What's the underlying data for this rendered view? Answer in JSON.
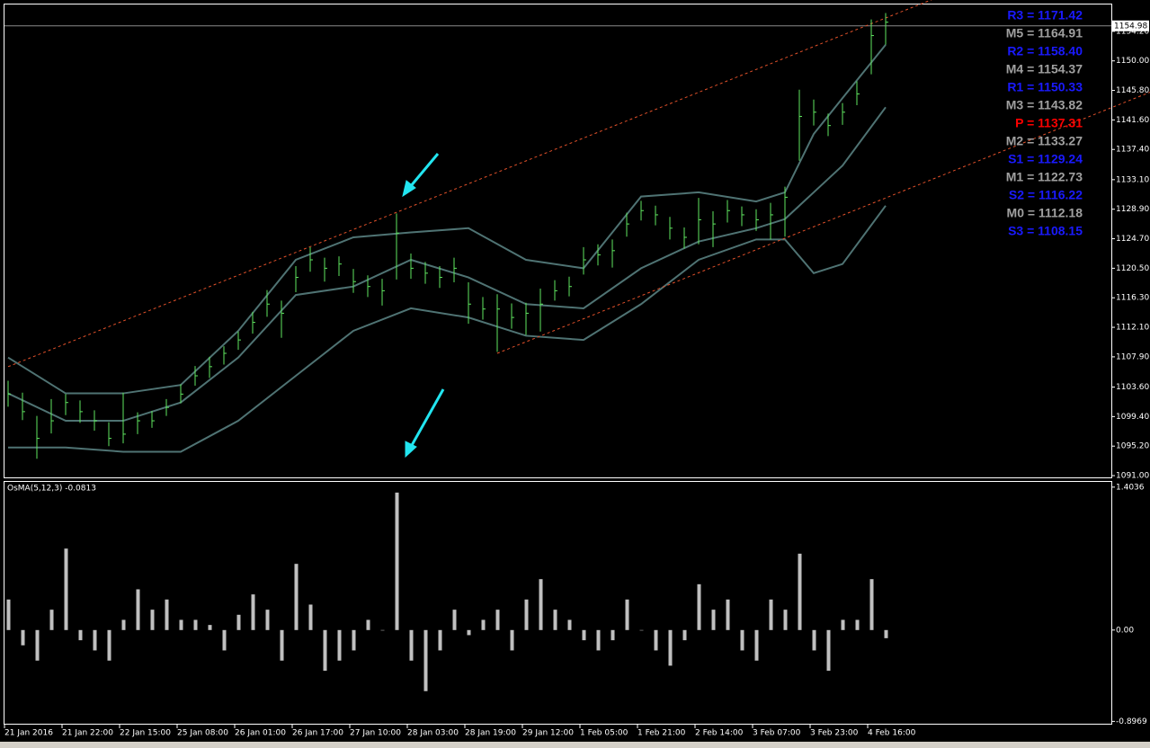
{
  "chart_data": [
    {
      "type": "ohlc",
      "categories": [
        "21 Jan 2016",
        null,
        null,
        null,
        "21 Jan 22:00",
        null,
        null,
        null,
        "22 Jan 15:00",
        null,
        null,
        null,
        "25 Jan 08:00",
        null,
        null,
        null,
        "26 Jan 01:00",
        null,
        null,
        null,
        "26 Jan 17:00",
        null,
        null,
        null,
        "27 Jan 10:00",
        null,
        null,
        null,
        "28 Jan 03:00",
        null,
        null,
        null,
        "28 Jan 19:00",
        null,
        null,
        null,
        "29 Jan 12:00",
        null,
        null,
        null,
        "1 Feb 05:00",
        null,
        null,
        null,
        "1 Feb 21:00",
        null,
        null,
        null,
        "2 Feb 14:00",
        null,
        null,
        null,
        "3 Feb 07:00",
        null,
        null,
        null,
        "3 Feb 23:00",
        null,
        null,
        null,
        "4 Feb 16:00",
        null
      ],
      "high": [
        1104.5,
        1102.8,
        1099.5,
        1101.9,
        1102.6,
        1101.7,
        1100.3,
        1098.6,
        1102.8,
        1100.0,
        1100.2,
        1101.9,
        1104.0,
        1106.6,
        1107.9,
        1109.4,
        1111.5,
        1114.3,
        1117.4,
        1115.9,
        1120.8,
        1123.5,
        1122.0,
        1122.2,
        1120.4,
        1119.5,
        1119.0,
        1128.3,
        1122.6,
        1121.4,
        1120.8,
        1122.0,
        1118.5,
        1116.4,
        1116.8,
        1115.5,
        1115.6,
        1117.6,
        1118.8,
        1119.3,
        1123.5,
        1123.9,
        1124.6,
        1128.4,
        1130.1,
        1129.4,
        1127.8,
        1126.3,
        1130.5,
        1128.6,
        1130.2,
        1129.3,
        1128.9,
        1129.8,
        1132.1,
        1145.9,
        1144.5,
        1142.5,
        1144.0,
        1147.1,
        1155.9,
        1156.8
      ],
      "low": [
        1100.8,
        1098.9,
        1093.4,
        1097.0,
        1099.6,
        1098.5,
        1097.4,
        1095.2,
        1095.6,
        1096.9,
        1097.8,
        1099.5,
        1101.3,
        1103.8,
        1104.9,
        1106.8,
        1108.9,
        1111.2,
        1113.6,
        1110.6,
        1117.1,
        1120.0,
        1118.6,
        1119.4,
        1117.0,
        1116.4,
        1115.2,
        1118.9,
        1119.0,
        1118.3,
        1117.7,
        1118.5,
        1112.6,
        1113.2,
        1108.6,
        1111.9,
        1111.0,
        1111.5,
        1115.9,
        1116.5,
        1119.6,
        1120.9,
        1120.6,
        1125.0,
        1127.3,
        1126.6,
        1124.6,
        1123.3,
        1123.9,
        1123.5,
        1127.0,
        1126.5,
        1125.8,
        1124.6,
        1125.0,
        1135.8,
        1140.8,
        1139.3,
        1140.9,
        1143.7,
        1148.1,
        1152.3
      ],
      "close": [
        1102.6,
        1100.1,
        1096.3,
        1098.8,
        1101.4,
        1100.1,
        1098.8,
        1096.3,
        1096.9,
        1098.8,
        1098.8,
        1100.7,
        1102.6,
        1105.2,
        1106.5,
        1108.4,
        1110.3,
        1112.8,
        1115.4,
        1114.1,
        1119.2,
        1121.7,
        1120.5,
        1121.1,
        1118.6,
        1117.9,
        1117.3,
        1125.5,
        1120.5,
        1119.8,
        1119.2,
        1120.5,
        1115.4,
        1114.7,
        1114.7,
        1113.5,
        1114.1,
        1115.4,
        1117.3,
        1117.9,
        1121.7,
        1122.4,
        1123.0,
        1126.8,
        1128.7,
        1128.1,
        1126.2,
        1124.9,
        1127.4,
        1126.8,
        1128.7,
        1128.1,
        1127.4,
        1128.1,
        1130.6,
        1142.1,
        1142.7,
        1140.8,
        1142.7,
        1145.3,
        1153.6,
        1155.5
      ],
      "color": "#5fe65f",
      "band_x": [
        0,
        4,
        8,
        12,
        16,
        20,
        24,
        28,
        32,
        36,
        40,
        44,
        48,
        52,
        54,
        56,
        58,
        61
      ],
      "upper_band": [
        1107.8,
        1102.7,
        1102.7,
        1103.9,
        1111.6,
        1121.7,
        1124.9,
        1125.6,
        1126.2,
        1121.7,
        1120.5,
        1130.7,
        1131.3,
        1130.0,
        1131.3,
        1139.6,
        1144.7,
        1152.3
      ],
      "middle_band": [
        1102.7,
        1098.8,
        1098.8,
        1101.4,
        1107.8,
        1116.7,
        1117.9,
        1121.7,
        1119.2,
        1115.4,
        1114.8,
        1120.5,
        1124.3,
        1126.2,
        1127.5,
        1131.3,
        1135.1,
        1143.4
      ],
      "lower_band": [
        1095.0,
        1095.0,
        1094.4,
        1094.4,
        1098.8,
        1105.2,
        1111.6,
        1114.8,
        1113.5,
        1110.9,
        1110.3,
        1115.4,
        1121.7,
        1124.6,
        1124.6,
        1119.8,
        1121.1,
        1129.4
      ],
      "band_color": "#4f7373",
      "channel_lines": [
        {
          "x": [
            0,
            61
          ],
          "values": [
            1106.5,
            1156.1
          ]
        },
        {
          "x": [
            34,
            61
          ],
          "values": [
            1108.4,
            1130.5
          ]
        }
      ],
      "channel_color": "#e0502a",
      "last_price": 1154.98,
      "ylim": [
        1090.75,
        1158.02
      ],
      "yticks": [
        {
          "value": 1091,
          "label": "1091.00"
        },
        {
          "value": 1095.2,
          "label": "1095.20"
        },
        {
          "value": 1099.4,
          "label": "1099.40"
        },
        {
          "value": 1103.6,
          "label": "1103.60"
        },
        {
          "value": 1107.9,
          "label": "1107.90"
        },
        {
          "value": 1112.1,
          "label": "1112.10"
        },
        {
          "value": 1116.3,
          "label": "1116.30"
        },
        {
          "value": 1120.5,
          "label": "1120.50"
        },
        {
          "value": 1124.7,
          "label": "1124.70"
        },
        {
          "value": 1128.9,
          "label": "1128.90"
        },
        {
          "value": 1133.1,
          "label": "1133.10"
        },
        {
          "value": 1137.4,
          "label": "1137.40"
        },
        {
          "value": 1141.6,
          "label": "1141.60"
        },
        {
          "value": 1145.8,
          "label": "1145.80"
        },
        {
          "value": 1150,
          "label": "1150.00"
        },
        {
          "value": 1154.2,
          "label": "1154.20"
        }
      ],
      "annotations": [
        {
          "text": "R3 = 1171.42",
          "color": "#1a1aff"
        },
        {
          "text": "M5 = 1164.91",
          "color": "#a0a0a0"
        },
        {
          "text": "R2 = 1158.40",
          "color": "#1a1aff"
        },
        {
          "text": "M4 = 1154.37",
          "color": "#a0a0a0"
        },
        {
          "text": "R1 = 1150.33",
          "color": "#1a1aff"
        },
        {
          "text": "M3 = 1143.82",
          "color": "#a0a0a0"
        },
        {
          "text": "P  = 1137.31",
          "color": "#ff0000"
        },
        {
          "text": "M2 = 1133.27",
          "color": "#a0a0a0"
        },
        {
          "text": "S1 = 1129.24",
          "color": "#1a1aff"
        },
        {
          "text": "M1 = 1122.73",
          "color": "#a0a0a0"
        },
        {
          "text": "S2 = 1116.22",
          "color": "#1a1aff"
        },
        {
          "text": "M0 = 1112.18",
          "color": "#a0a0a0"
        },
        {
          "text": "S3 = 1108.15",
          "color": "#1a1aff"
        }
      ]
    },
    {
      "type": "bar",
      "title": "OsMA(5,12,3) -0.0813",
      "values": [
        0.3,
        -0.15,
        -0.3,
        0.2,
        0.8,
        -0.1,
        -0.2,
        -0.3,
        0.1,
        0.4,
        0.2,
        0.3,
        0.1,
        0.1,
        0.05,
        -0.2,
        0.15,
        0.35,
        0.2,
        -0.3,
        0.65,
        0.25,
        -0.4,
        -0.3,
        -0.2,
        0.1,
        0.0,
        1.35,
        -0.3,
        -0.6,
        -0.2,
        0.2,
        -0.05,
        0.1,
        0.2,
        -0.2,
        0.3,
        0.5,
        0.2,
        0.1,
        -0.1,
        -0.2,
        -0.1,
        0.3,
        0.0,
        -0.2,
        -0.35,
        -0.1,
        0.45,
        0.2,
        0.3,
        -0.2,
        -0.3,
        0.3,
        0.2,
        0.75,
        -0.2,
        -0.4,
        0.1,
        0.1,
        0.5,
        -0.08
      ],
      "color": "#c0c0c0",
      "ylim": [
        -0.92,
        1.455
      ],
      "yticks": [
        -0.8969,
        {
          "value": 0,
          "label": "0.00"
        },
        1.4036
      ]
    }
  ]
}
